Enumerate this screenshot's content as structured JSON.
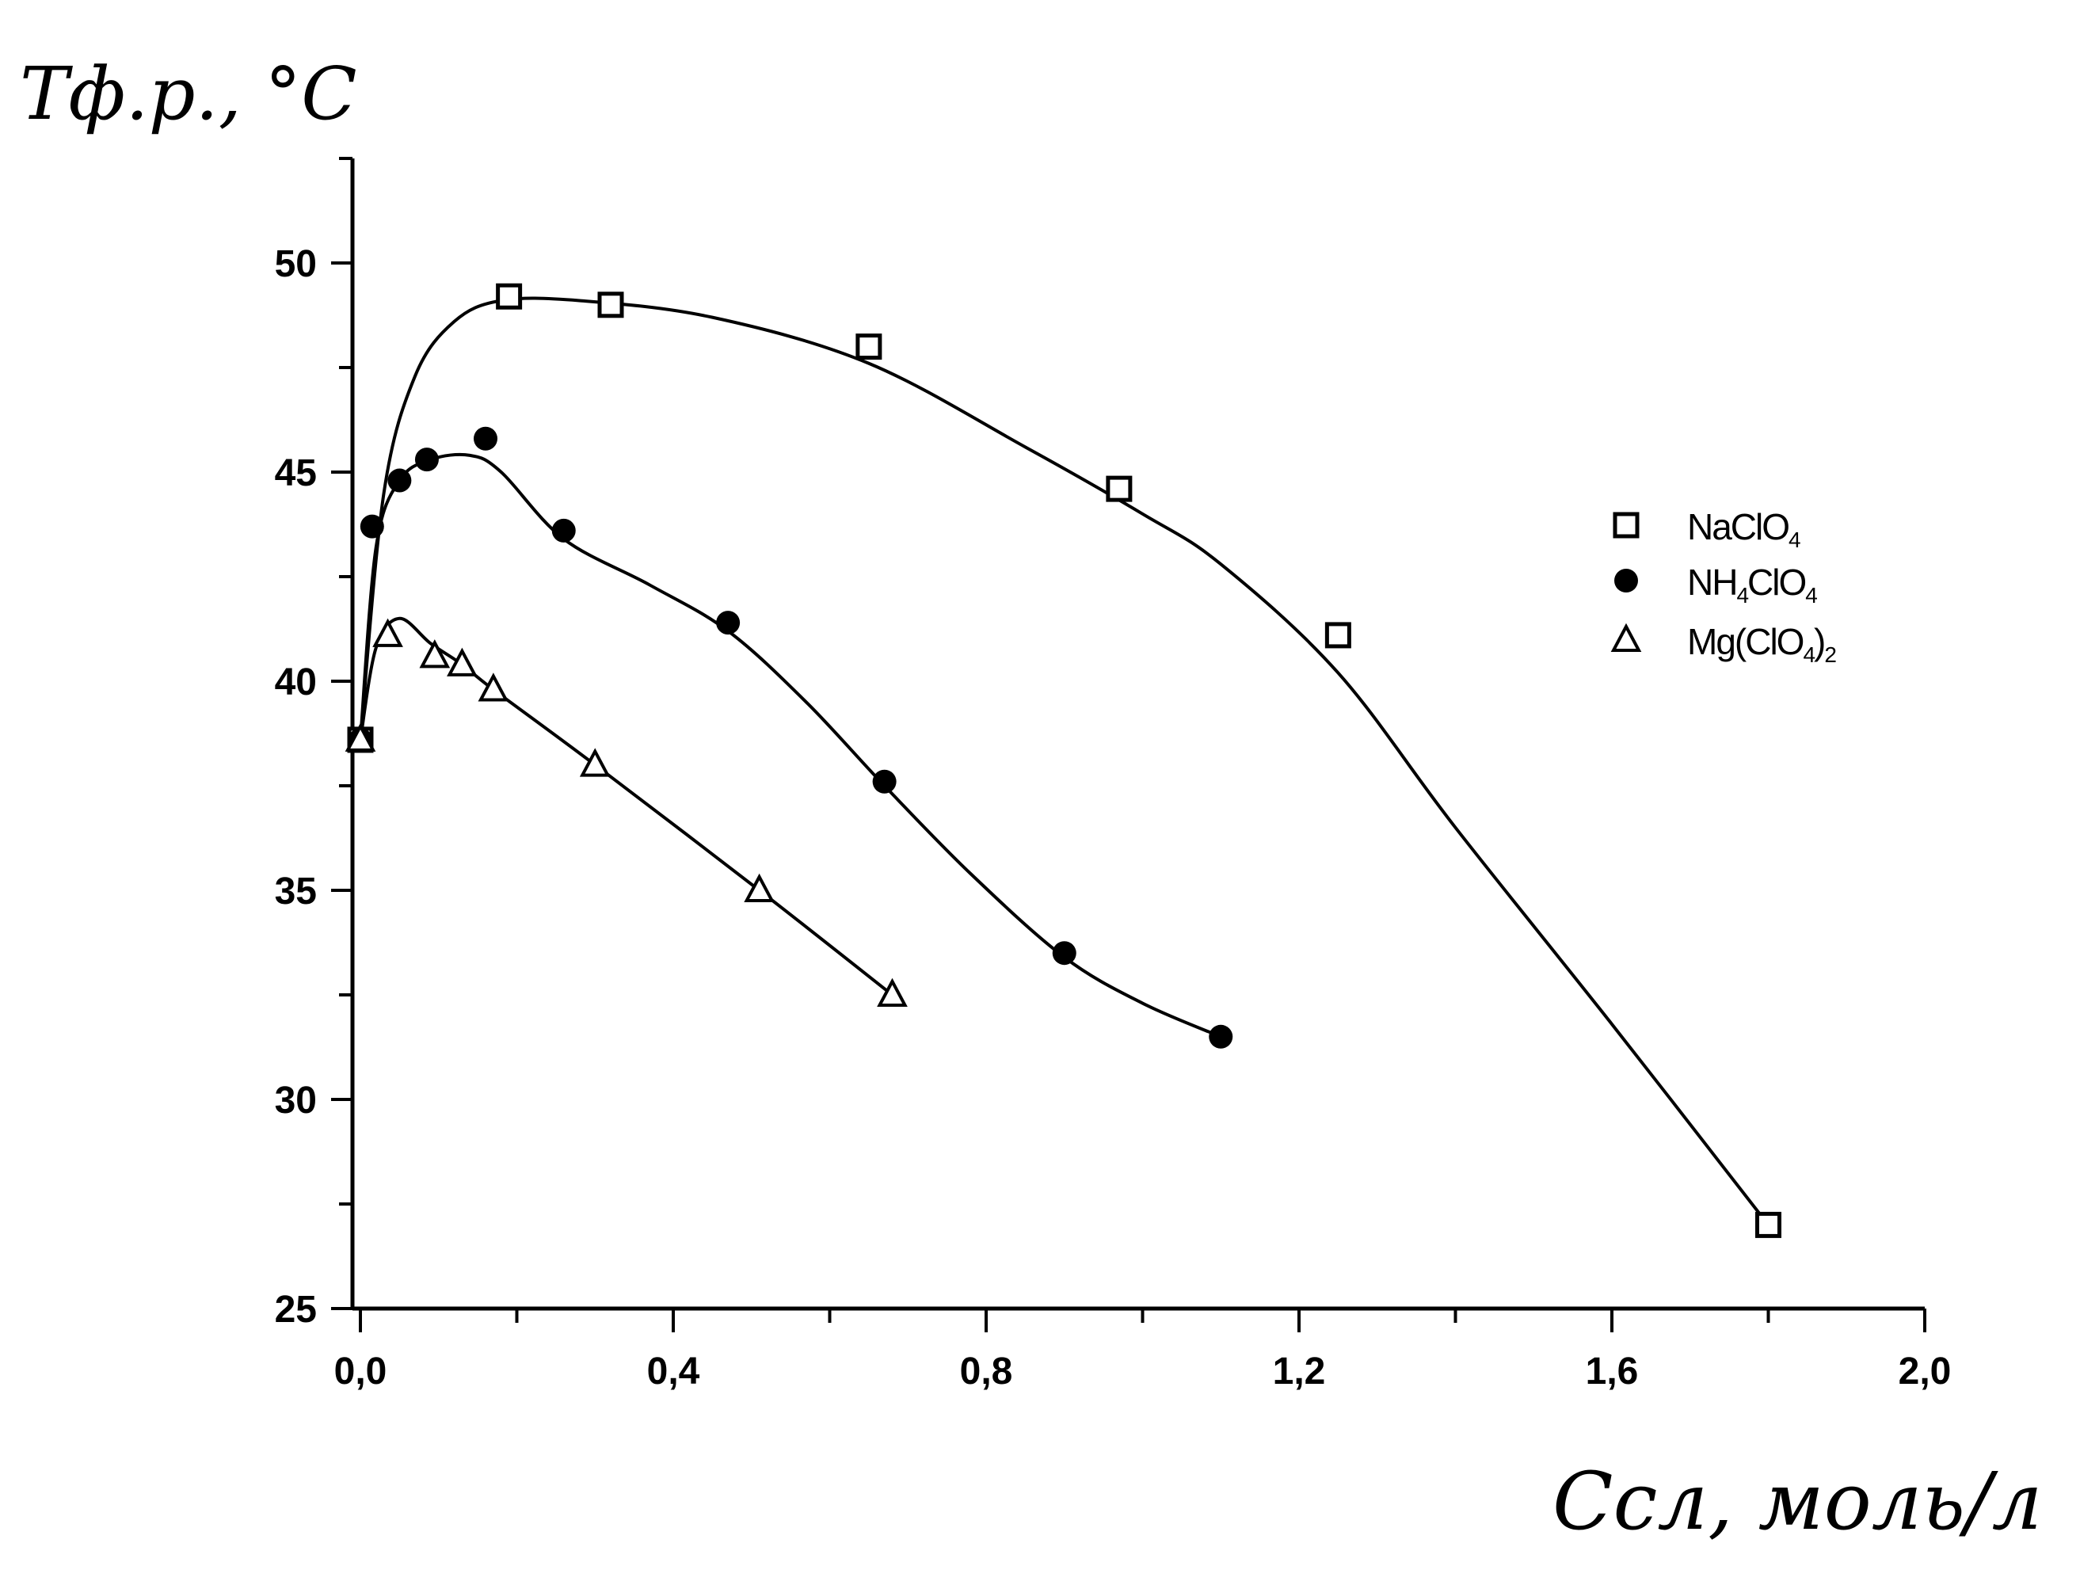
{
  "chart_data": {
    "type": "line",
    "title": "",
    "ylabel": "Tф.р., °C",
    "xlabel": "Cсл, моль/л",
    "xlim": [
      0.0,
      2.0
    ],
    "ylim": [
      25,
      52
    ],
    "x_ticks": [
      0.0,
      0.4,
      0.8,
      1.2,
      1.6,
      2.0
    ],
    "x_tick_labels": [
      "0,0",
      "0,4",
      "0,8",
      "1,2",
      "1,6",
      "2,0"
    ],
    "y_ticks": [
      25,
      30,
      35,
      40,
      45,
      50
    ],
    "y_tick_labels": [
      "25",
      "30",
      "35",
      "40",
      "45",
      "50"
    ],
    "grid": false,
    "legend_position": "right",
    "series": [
      {
        "name": "NaClO4",
        "legend_parts": [
          "NaClO",
          "4",
          ""
        ],
        "marker": "square-open",
        "x": [
          0.0,
          0.19,
          0.32,
          0.65,
          0.97,
          1.25,
          1.8
        ],
        "y": [
          38.6,
          49.2,
          49.0,
          48.0,
          44.6,
          41.1,
          27.0
        ],
        "curve_x": [
          0.0,
          0.03,
          0.07,
          0.12,
          0.18,
          0.28,
          0.45,
          0.65,
          0.85,
          1.0,
          1.1,
          1.25,
          1.4,
          1.6,
          1.8
        ],
        "curve_y": [
          38.6,
          44.5,
          47.3,
          48.6,
          49.1,
          49.1,
          48.7,
          47.6,
          45.6,
          44.0,
          42.8,
          40.2,
          36.5,
          31.8,
          27.0
        ]
      },
      {
        "name": "NH4ClO4",
        "legend_parts": [
          "NH",
          "4",
          "ClO",
          "4",
          ""
        ],
        "marker": "circle-filled",
        "x": [
          0.0,
          0.015,
          0.05,
          0.085,
          0.16,
          0.26,
          0.47,
          0.67,
          0.9,
          1.1
        ],
        "y": [
          38.6,
          43.7,
          44.8,
          45.3,
          45.8,
          43.6,
          41.4,
          37.6,
          33.5,
          31.5
        ],
        "curve_x": [
          0.0,
          0.02,
          0.05,
          0.09,
          0.14,
          0.18,
          0.26,
          0.37,
          0.47,
          0.57,
          0.67,
          0.78,
          0.9,
          1.0,
          1.1
        ],
        "curve_y": [
          38.6,
          43.2,
          44.8,
          45.3,
          45.4,
          45.0,
          43.4,
          42.3,
          41.2,
          39.5,
          37.5,
          35.4,
          33.4,
          32.3,
          31.5
        ]
      },
      {
        "name": "Mg(ClO4)2",
        "legend_parts": [
          "Mg(ClO",
          "4",
          ")",
          "2",
          ""
        ],
        "marker": "triangle-open",
        "x": [
          0.0,
          0.035,
          0.095,
          0.13,
          0.17,
          0.3,
          0.51,
          0.68
        ],
        "y": [
          38.6,
          41.1,
          40.6,
          40.4,
          39.8,
          38.0,
          35.0,
          32.5
        ],
        "curve_x": [
          0.0,
          0.02,
          0.05,
          0.09,
          0.13,
          0.17,
          0.3,
          0.51,
          0.68
        ],
        "curve_y": [
          38.6,
          40.8,
          41.5,
          40.9,
          40.4,
          39.8,
          38.0,
          35.0,
          32.5
        ]
      }
    ]
  }
}
